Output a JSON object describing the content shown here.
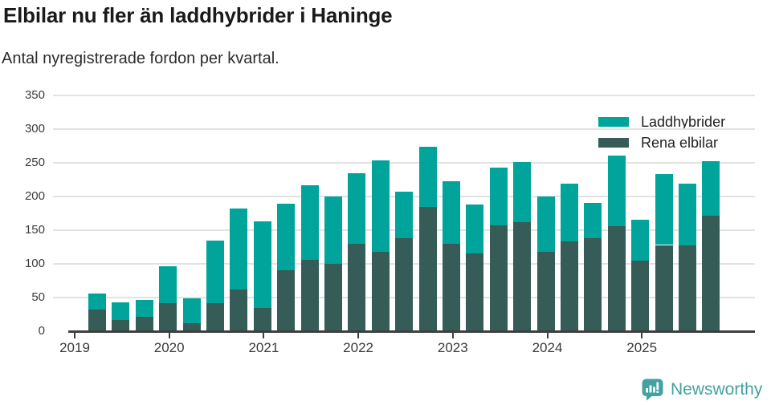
{
  "title": "Elbilar nu fler än laddhybrider i Haninge",
  "subtitle": "Antal nyregistrerade fordon per kvartal.",
  "legend": [
    {
      "label": "Laddhybrider",
      "color": "#00a49b"
    },
    {
      "label": "Rena elbilar",
      "color": "#355c56"
    }
  ],
  "footer": {
    "brand": "Newsworthy",
    "color": "#43a2a0"
  },
  "colors": {
    "laddhybrider": "#00a49b",
    "rena_elbilar": "#355c56",
    "gridline": "#e2e2e2",
    "axis": "#3f3f3f",
    "title_text": "#1a1a1a"
  },
  "chart_data": {
    "type": "bar",
    "stacked": true,
    "title": "Elbilar nu fler än laddhybrider i Haninge",
    "subtitle": "Antal nyregistrerade fordon per kvartal.",
    "categories": [
      "2019 Q2",
      "2019 Q3",
      "2019 Q4",
      "2020 Q1",
      "2020 Q2",
      "2020 Q3",
      "2020 Q4",
      "2021 Q1",
      "2021 Q2",
      "2021 Q3",
      "2021 Q4",
      "2022 Q1",
      "2022 Q2",
      "2022 Q3",
      "2022 Q4",
      "2023 Q1",
      "2023 Q2",
      "2023 Q3",
      "2023 Q4",
      "2024 Q1",
      "2024 Q2",
      "2024 Q3",
      "2024 Q4",
      "2025 Q1",
      "2025 Q2",
      "2025 Q3",
      "2025 Q4"
    ],
    "series": [
      {
        "name": "Rena elbilar",
        "color": "#355c56",
        "stack_position": "bottom",
        "values": [
          32,
          17,
          21,
          42,
          12,
          42,
          62,
          35,
          90,
          106,
          100,
          130,
          118,
          138,
          185,
          130,
          115,
          157,
          162,
          118,
          133,
          138,
          156,
          105,
          128,
          127,
          172
        ]
      },
      {
        "name": "Laddhybrider",
        "color": "#00a49b",
        "stack_position": "top",
        "values": [
          24,
          26,
          25,
          54,
          37,
          93,
          120,
          128,
          99,
          111,
          100,
          105,
          136,
          69,
          89,
          93,
          73,
          86,
          89,
          82,
          86,
          52,
          105,
          60,
          105,
          92,
          81
        ]
      }
    ],
    "year_ticks": [
      "2019",
      "2020",
      "2021",
      "2022",
      "2023",
      "2024",
      "2025"
    ],
    "xlabel": "",
    "ylabel": "",
    "ylim": [
      0,
      350
    ],
    "yticks": [
      0,
      50,
      100,
      150,
      200,
      250,
      300,
      350
    ],
    "grid": "horizontal",
    "legend_position": "top-right"
  }
}
